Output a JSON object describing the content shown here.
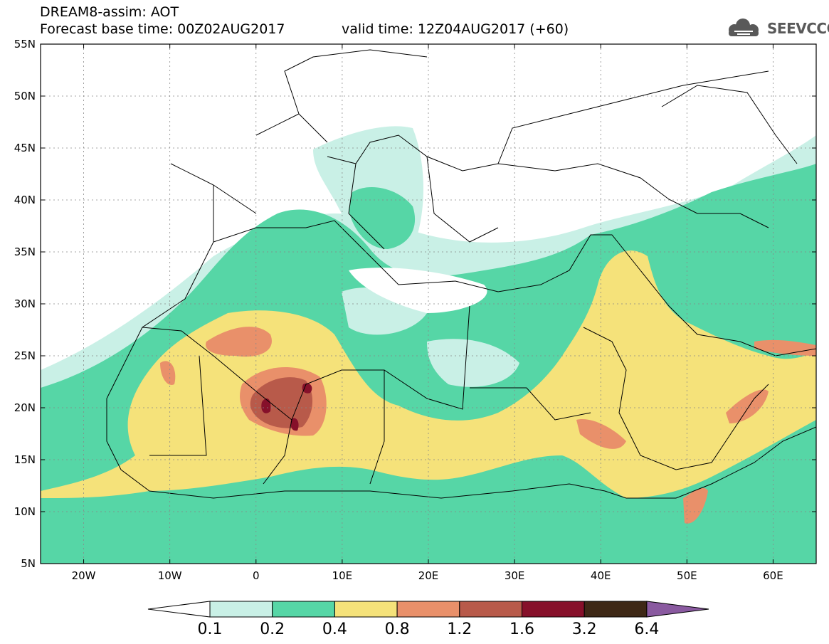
{
  "header": {
    "title_line1": "DREAM8-assim: AOT",
    "title_line2": "Forecast base time: 00Z02AUG2017",
    "valid_time": "valid time: 12Z04AUG2017 (+60)",
    "logo_text": "SEEVCCC"
  },
  "map": {
    "lon_range": [
      -25,
      65
    ],
    "lat_range": [
      5,
      55
    ],
    "lat_labels": [
      "55N",
      "50N",
      "45N",
      "40N",
      "35N",
      "30N",
      "25N",
      "20N",
      "15N",
      "10N",
      "5N"
    ],
    "lon_labels": [
      "20W",
      "10W",
      "0",
      "10E",
      "20E",
      "30E",
      "40E",
      "50E",
      "60E"
    ],
    "background": "#ffffff",
    "coastline_color": "#000000"
  },
  "colorbar": {
    "levels": [
      "0.1",
      "0.2",
      "0.4",
      "0.8",
      "1.2",
      "1.6",
      "3.2",
      "6.4"
    ],
    "colors": [
      "#c9f0e6",
      "#56d6a6",
      "#f5e27a",
      "#e9906a",
      "#b85a4a",
      "#86102a",
      "#3e2816",
      "#8a5aa0"
    ],
    "under_color": "#ffffff"
  }
}
